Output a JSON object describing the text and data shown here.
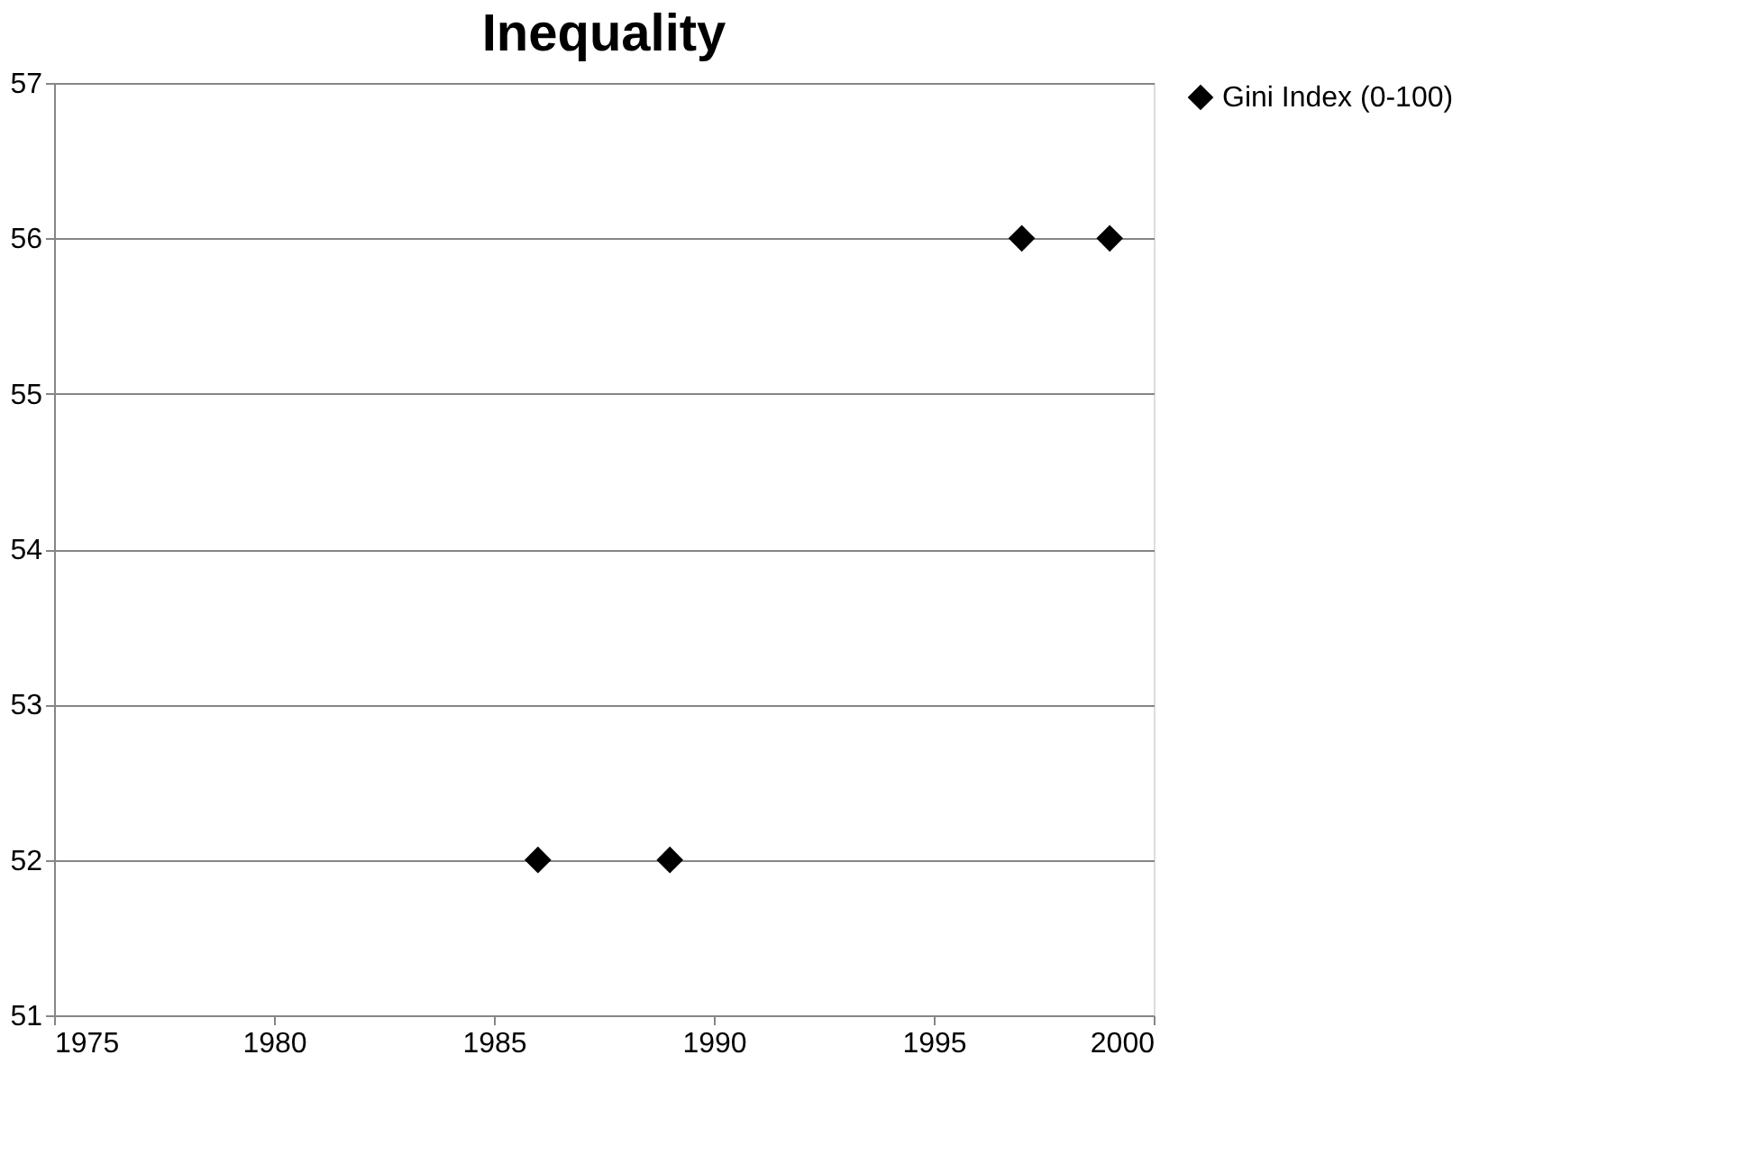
{
  "chart_data": {
    "type": "scatter",
    "title": "Inequality",
    "x": [
      1986,
      1989,
      1997,
      1999
    ],
    "series": [
      {
        "name": "Gini Index (0-100)",
        "color": "#000000",
        "values": [
          52,
          52,
          56,
          56
        ]
      }
    ],
    "xlim": [
      1975,
      2000
    ],
    "xticks": [
      1975,
      1980,
      1985,
      1990,
      1995,
      2000
    ],
    "ylim": [
      51,
      57
    ],
    "yticks": [
      51,
      52,
      53,
      54,
      55,
      56,
      57
    ],
    "grid": "y",
    "legend": "right",
    "marker": "diamond"
  }
}
